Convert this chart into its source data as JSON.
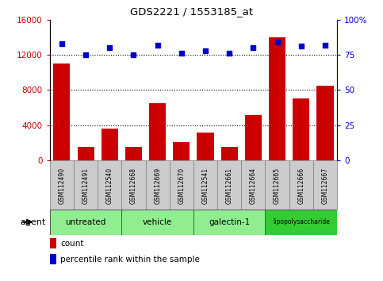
{
  "title": "GDS2221 / 1553185_at",
  "samples": [
    "GSM112490",
    "GSM112491",
    "GSM112540",
    "GSM112668",
    "GSM112669",
    "GSM112670",
    "GSM112541",
    "GSM112661",
    "GSM112664",
    "GSM112665",
    "GSM112666",
    "GSM112667"
  ],
  "counts": [
    11000,
    1500,
    3600,
    1500,
    6500,
    2100,
    3100,
    1500,
    5100,
    14000,
    7000,
    8500
  ],
  "percentiles": [
    83,
    75,
    80,
    75,
    82,
    76,
    78,
    76,
    80,
    84,
    81,
    82
  ],
  "bar_color": "#cc0000",
  "dot_color": "#0000cc",
  "left_ylim": [
    0,
    16000
  ],
  "left_yticks": [
    0,
    4000,
    8000,
    12000,
    16000
  ],
  "right_ylim": [
    0,
    100
  ],
  "right_yticks": [
    0,
    25,
    50,
    75,
    100
  ],
  "right_yticklabels": [
    "0",
    "25",
    "50",
    "75",
    "100%"
  ],
  "groups": [
    {
      "label": "untreated",
      "start": 0,
      "end": 3,
      "color": "#90ee90"
    },
    {
      "label": "vehicle",
      "start": 3,
      "end": 6,
      "color": "#90ee90"
    },
    {
      "label": "galectin-1",
      "start": 6,
      "end": 9,
      "color": "#90ee90"
    },
    {
      "label": "lipopolysaccharide",
      "start": 9,
      "end": 12,
      "color": "#32cd32"
    }
  ],
  "agent_label": "agent",
  "legend_count_label": "count",
  "legend_pct_label": "percentile rank within the sample",
  "grid_color": "black",
  "tick_area_color": "#cccccc",
  "tick_area_border": "#888888",
  "bg_color": "#ffffff"
}
